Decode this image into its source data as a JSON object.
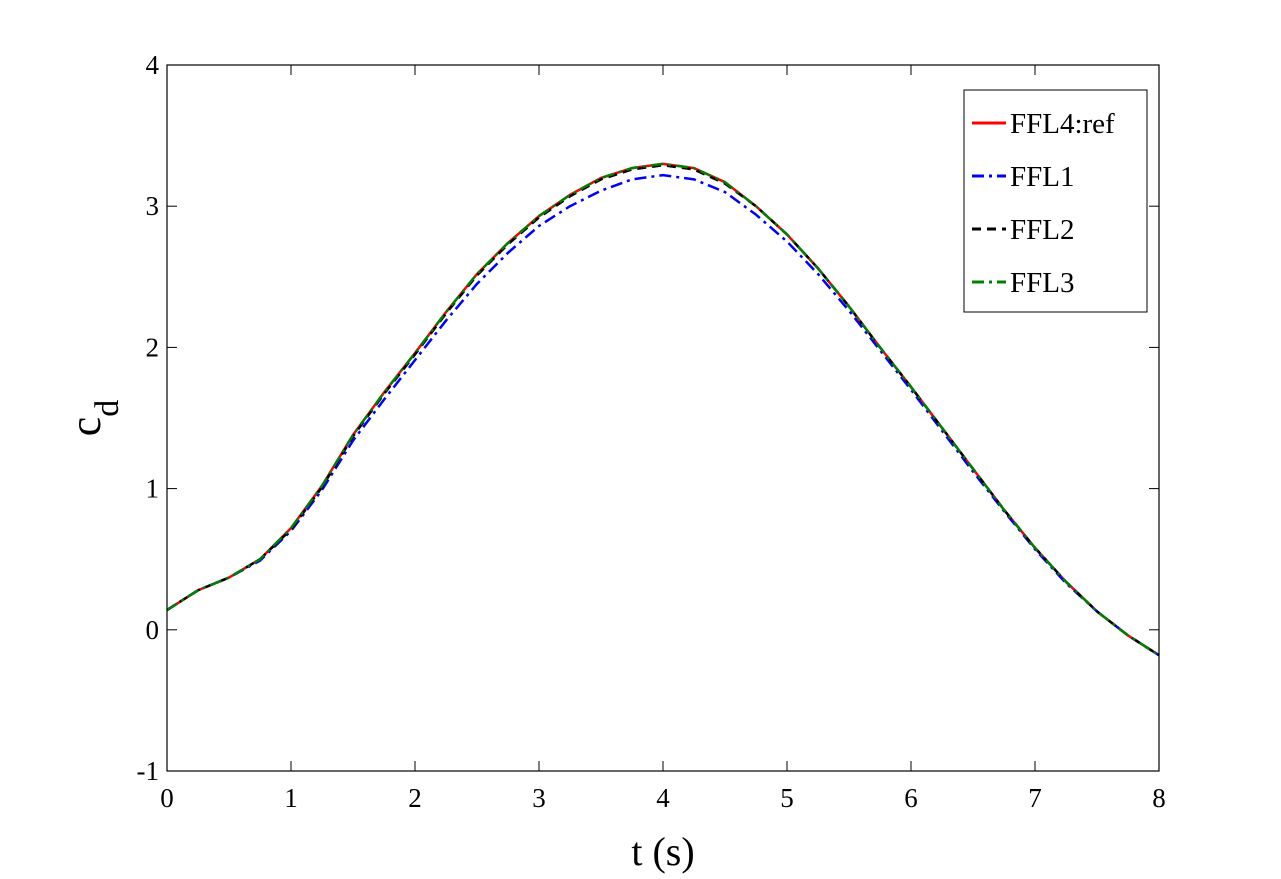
{
  "chart_data": {
    "type": "line",
    "xlabel": "t (s)",
    "ylabel": {
      "text": "c",
      "subscript": "d"
    },
    "xlim": [
      0,
      8
    ],
    "ylim": [
      -1,
      4
    ],
    "xticks": [
      0,
      1,
      2,
      3,
      4,
      5,
      6,
      7,
      8
    ],
    "yticks": [
      -1,
      0,
      1,
      2,
      3,
      4
    ],
    "grid": false,
    "legend": "upper-right",
    "x": [
      0,
      0.25,
      0.5,
      0.75,
      1,
      1.25,
      1.5,
      1.75,
      2,
      2.25,
      2.5,
      2.75,
      3,
      3.25,
      3.5,
      3.75,
      4,
      4.25,
      4.5,
      4.75,
      5,
      5.25,
      5.5,
      5.75,
      6,
      6.25,
      6.5,
      6.75,
      7,
      7.25,
      7.5,
      7.75,
      8
    ],
    "series": [
      {
        "name": "FFL4:ref",
        "color": "#ff0000",
        "dash": "solid",
        "values": [
          0.14,
          0.28,
          0.37,
          0.5,
          0.72,
          1.02,
          1.38,
          1.68,
          1.96,
          2.25,
          2.52,
          2.74,
          2.93,
          3.08,
          3.2,
          3.27,
          3.3,
          3.27,
          3.17,
          3.0,
          2.8,
          2.56,
          2.29,
          2.0,
          1.72,
          1.43,
          1.14,
          0.85,
          0.58,
          0.34,
          0.13,
          -0.04,
          -0.18
        ]
      },
      {
        "name": "FFL1",
        "color": "#0000ff",
        "dash": "dashdot",
        "values": [
          0.14,
          0.28,
          0.37,
          0.49,
          0.7,
          0.99,
          1.34,
          1.63,
          1.91,
          2.19,
          2.45,
          2.67,
          2.86,
          3.0,
          3.11,
          3.19,
          3.22,
          3.19,
          3.1,
          2.94,
          2.75,
          2.52,
          2.26,
          1.98,
          1.7,
          1.41,
          1.12,
          0.84,
          0.57,
          0.33,
          0.13,
          -0.04,
          -0.18
        ]
      },
      {
        "name": "FFL2",
        "color": "#000000",
        "dash": "dashed",
        "values": [
          0.14,
          0.28,
          0.37,
          0.5,
          0.71,
          1.01,
          1.37,
          1.67,
          1.95,
          2.24,
          2.51,
          2.73,
          2.92,
          3.07,
          3.19,
          3.26,
          3.29,
          3.26,
          3.16,
          3.0,
          2.8,
          2.56,
          2.29,
          2.0,
          1.72,
          1.43,
          1.14,
          0.85,
          0.58,
          0.34,
          0.13,
          -0.04,
          -0.18
        ]
      },
      {
        "name": "FFL3",
        "color": "#008000",
        "dash": "dashdot",
        "values": [
          0.14,
          0.28,
          0.37,
          0.5,
          0.72,
          1.02,
          1.38,
          1.68,
          1.96,
          2.25,
          2.52,
          2.74,
          2.93,
          3.08,
          3.2,
          3.27,
          3.3,
          3.27,
          3.17,
          3.0,
          2.8,
          2.56,
          2.29,
          2.0,
          1.72,
          1.43,
          1.14,
          0.85,
          0.58,
          0.34,
          0.13,
          -0.04,
          -0.18
        ]
      }
    ]
  }
}
